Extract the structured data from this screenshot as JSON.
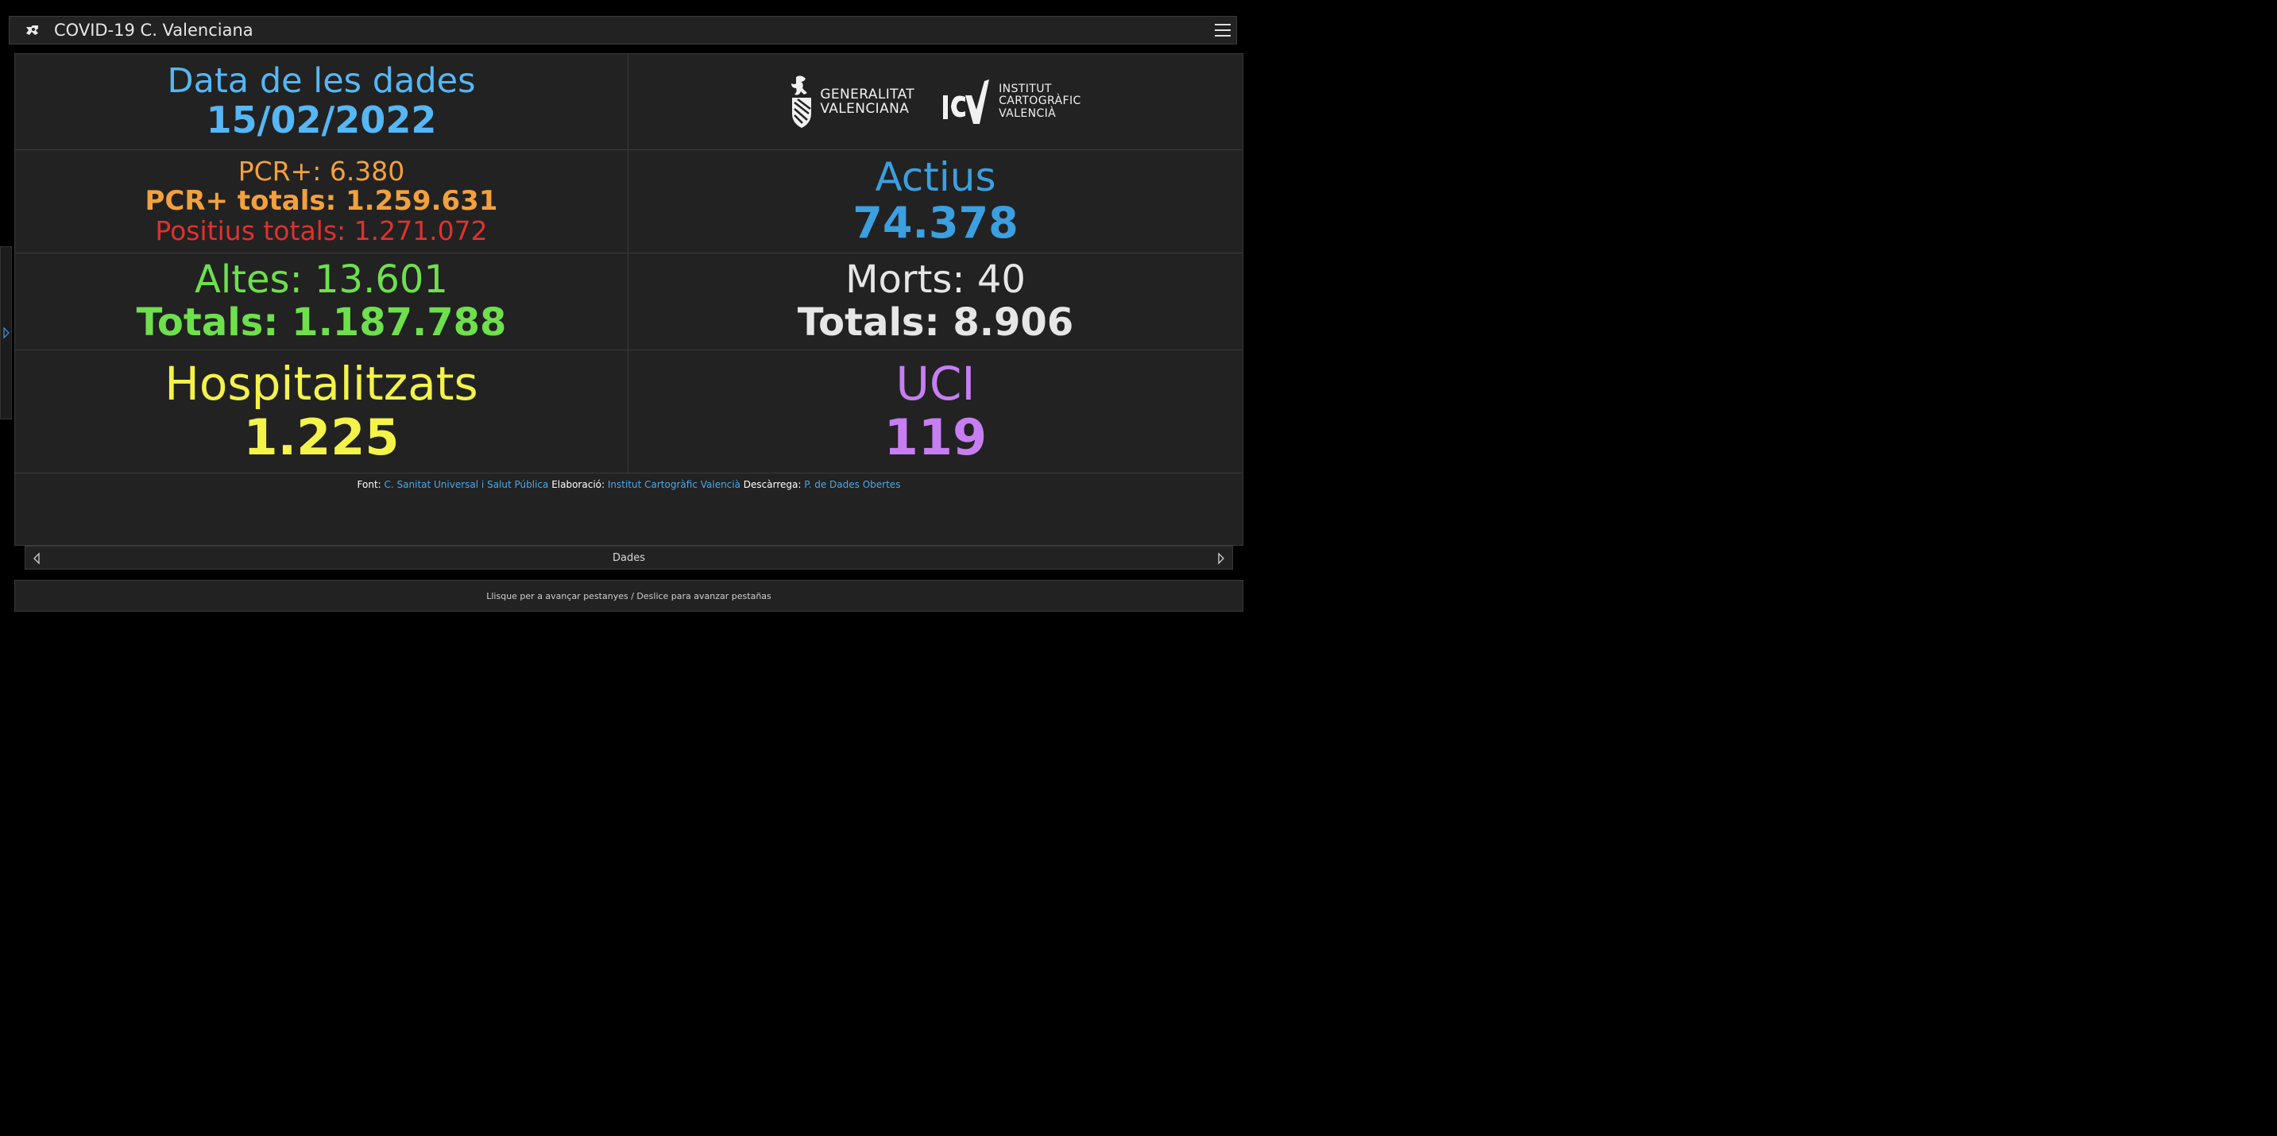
{
  "app": {
    "title": "COVID-19 C. Valenciana",
    "icon": "app-logo-icon",
    "menu_icon": "hamburger-menu-icon"
  },
  "date": {
    "label": "Data de les dades",
    "value": "15/02/2022"
  },
  "logos": {
    "gva": {
      "line1": "GENERALITAT",
      "line2": "VALENCIANA",
      "icon": "gva-emblem-icon"
    },
    "icv": {
      "line1": "INSTITUT",
      "line2": "CARTOGRÀFIC",
      "line3": "VALENCIÀ",
      "icon": "icv-logo-icon"
    }
  },
  "pcr": {
    "daily": "PCR+: 6.380",
    "total": "PCR+ totals: 1.259.631",
    "positius": "Positius totals: 1.271.072"
  },
  "actius": {
    "label": "Actius",
    "value": "74.378"
  },
  "altes": {
    "daily": "Altes: 13.601",
    "total": "Totals: 1.187.788"
  },
  "morts": {
    "daily": "Morts: 40",
    "total": "Totals: 8.906"
  },
  "hospitalitzats": {
    "label": "Hospitalitzats",
    "value": "1.225"
  },
  "uci": {
    "label": "UCI",
    "value": "119"
  },
  "footer": {
    "font_label": "Font:",
    "font_link": "C. Sanitat Universal i Salut Pública",
    "elab_label": "Elaboració:",
    "elab_link": "Institut Cartogràfic Valencià",
    "desc_label": "Descàrrega:",
    "desc_link": "P. de Dades Obertes"
  },
  "tabbar": {
    "label": "Dades"
  },
  "hint": "Llisque per a avançar pestanyes / Deslice para avanzar pestañas",
  "colors": {
    "date": "#55b7f5",
    "pcr_daily": "#f2a13e",
    "positius": "#e0322e",
    "altes": "#6ee04d",
    "morts": "#e6e6e6",
    "hospitalitzats": "#f3f34a",
    "uci": "#c77ef2",
    "actius": "#3b9fe0",
    "link": "#4aa8e8"
  }
}
